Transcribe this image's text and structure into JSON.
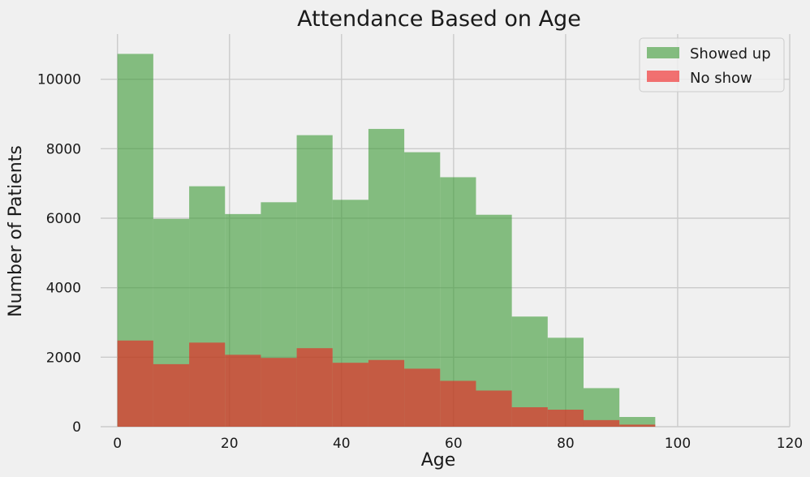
{
  "chart_data": {
    "type": "bar",
    "title": "Attendance Based on Age",
    "xlabel": "Age",
    "ylabel": "Number of Patients",
    "xlim": [
      -3,
      120
    ],
    "ylim": [
      0,
      11300
    ],
    "xticks": [
      0,
      20,
      40,
      60,
      80,
      100,
      120
    ],
    "yticks": [
      0,
      2000,
      4000,
      6000,
      8000,
      10000
    ],
    "bin_edges": [
      0,
      6.4,
      12.8,
      19.2,
      25.6,
      32.0,
      38.4,
      44.8,
      51.2,
      57.6,
      64.0,
      70.4,
      76.8,
      83.2,
      89.6,
      96.0
    ],
    "grid": true,
    "legend_position": "top-right",
    "series": [
      {
        "name": "Showed up",
        "color": "#3a9a33",
        "values": [
          10730,
          5980,
          6920,
          6120,
          6460,
          8390,
          6530,
          8570,
          7900,
          7180,
          6100,
          3170,
          2560,
          1110,
          280
        ]
      },
      {
        "name": "No show",
        "color": "#f21a1a",
        "values": [
          2480,
          1800,
          2420,
          2070,
          1980,
          2260,
          1840,
          1920,
          1670,
          1320,
          1040,
          560,
          490,
          190,
          60
        ]
      }
    ]
  }
}
